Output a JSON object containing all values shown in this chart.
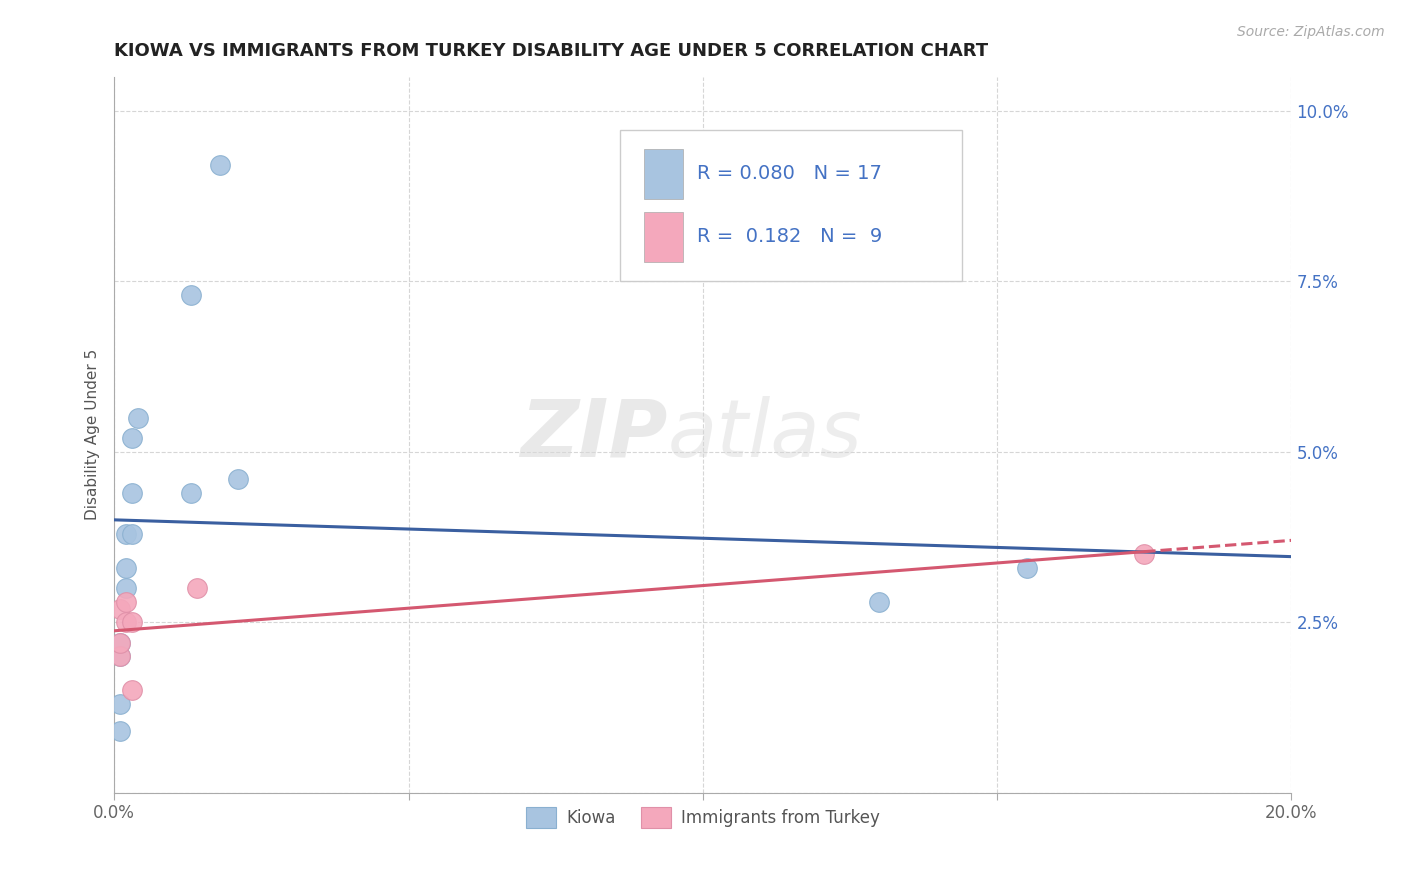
{
  "title": "KIOWA VS IMMIGRANTS FROM TURKEY DISABILITY AGE UNDER 5 CORRELATION CHART",
  "source": "Source: ZipAtlas.com",
  "xlabel": "",
  "ylabel": "Disability Age Under 5",
  "xlim": [
    0.0,
    0.2
  ],
  "ylim": [
    0.0,
    0.105
  ],
  "xticks": [
    0.0,
    0.05,
    0.1,
    0.15,
    0.2
  ],
  "xticklabels": [
    "0.0%",
    "",
    "",
    "",
    "20.0%"
  ],
  "yticks": [
    0.0,
    0.025,
    0.05,
    0.075,
    0.1
  ],
  "yticklabels": [
    "",
    "2.5%",
    "5.0%",
    "7.5%",
    "10.0%"
  ],
  "kiowa_x": [
    0.001,
    0.001,
    0.001,
    0.001,
    0.002,
    0.002,
    0.002,
    0.003,
    0.003,
    0.003,
    0.004,
    0.013,
    0.013,
    0.018,
    0.021,
    0.13,
    0.155
  ],
  "kiowa_y": [
    0.009,
    0.013,
    0.02,
    0.022,
    0.03,
    0.033,
    0.038,
    0.038,
    0.044,
    0.052,
    0.055,
    0.044,
    0.073,
    0.092,
    0.046,
    0.028,
    0.033
  ],
  "turkey_x": [
    0.001,
    0.001,
    0.001,
    0.002,
    0.002,
    0.003,
    0.003,
    0.014,
    0.175
  ],
  "turkey_y": [
    0.02,
    0.022,
    0.027,
    0.025,
    0.028,
    0.015,
    0.025,
    0.03,
    0.035
  ],
  "kiowa_color": "#a8c4e0",
  "turkey_color": "#f4a8bc",
  "kiowa_line_color": "#3a5fa0",
  "turkey_line_color": "#d45870",
  "kiowa_R": "0.080",
  "kiowa_N": "17",
  "turkey_R": "0.182",
  "turkey_N": "9",
  "legend_label_kiowa": "Kiowa",
  "legend_label_turkey": "Immigrants from Turkey",
  "bg_color": "#ffffff",
  "grid_color": "#cccccc",
  "watermark_zip": "ZIP",
  "watermark_atlas": "atlas",
  "title_fontsize": 13,
  "label_fontsize": 11,
  "tick_label_color": "#4472c4"
}
